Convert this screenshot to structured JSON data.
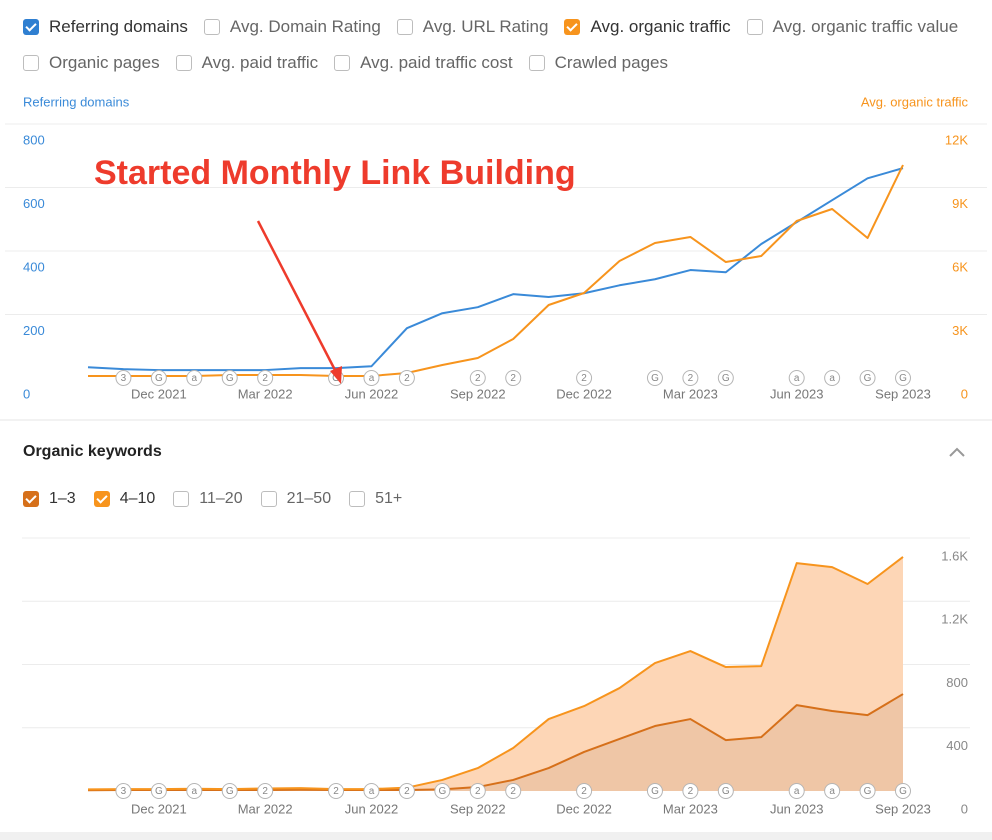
{
  "metric_options": [
    [
      {
        "label": "Referring domains",
        "checked": true,
        "color": "#2f7fd1"
      },
      {
        "label": "Avg. Domain Rating",
        "checked": false
      },
      {
        "label": "Avg. URL Rating",
        "checked": false
      },
      {
        "label": "Avg. organic traffic",
        "checked": true,
        "color": "#f7941d"
      },
      {
        "label": "Avg. organic traffic value",
        "checked": false
      }
    ],
    [
      {
        "label": "Organic pages",
        "checked": false
      },
      {
        "label": "Avg. paid traffic",
        "checked": false
      },
      {
        "label": "Avg. paid traffic cost",
        "checked": false
      },
      {
        "label": "Crawled pages",
        "checked": false
      }
    ]
  ],
  "chart_data": [
    {
      "type": "line",
      "annotation": "Started Monthly Link Building",
      "categories": [
        null,
        null,
        "Dec 2021",
        null,
        null,
        "Mar 2022",
        null,
        null,
        "Jun 2022",
        null,
        null,
        "Sep 2022",
        null,
        null,
        "Dec 2022",
        null,
        null,
        "Mar 2023",
        null,
        null,
        "Jun 2023",
        null,
        null,
        "Sep 2023"
      ],
      "markers": [
        null,
        "3",
        "G",
        "a",
        "G",
        "2",
        null,
        "G",
        "a",
        "2",
        null,
        "2",
        "2",
        null,
        "2",
        null,
        "G",
        "2",
        "G",
        null,
        "a",
        "a",
        "G",
        "G"
      ],
      "series": [
        {
          "name": "Referring domains",
          "color": "#3a8ad8",
          "values": [
            34,
            28,
            25,
            25,
            25,
            25,
            31,
            31,
            37,
            157,
            204,
            223,
            264,
            255,
            267,
            292,
            311,
            340,
            333,
            422,
            491,
            560,
            629,
            661
          ]
        },
        {
          "name": "Avg. organic traffic",
          "color": "#f7941d",
          "axis": "y2",
          "values": [
            95,
            97,
            97,
            97,
            142,
            142,
            142,
            97,
            97,
            237,
            614,
            945,
            1843,
            3449,
            4016,
            5528,
            6378,
            6662,
            5480,
            5764,
            7417,
            7984,
            6614,
            10063
          ]
        }
      ],
      "ylim": [
        0,
        800
      ],
      "yticks": [
        0,
        200,
        400,
        600,
        800
      ],
      "y2lim": [
        0,
        12000
      ],
      "y2ticks": [
        0,
        {
          "value": 3000,
          "label": "3K"
        },
        {
          "value": 6000,
          "label": "6K"
        },
        {
          "value": 9000,
          "label": "9K"
        },
        {
          "value": 12000,
          "label": "12K"
        }
      ],
      "grid": true
    },
    {
      "type": "stacked-area",
      "title": "Organic keywords",
      "other_options": [
        {
          "label": "11–20",
          "checked": false
        },
        {
          "label": "21–50",
          "checked": false
        },
        {
          "label": "51+",
          "checked": false
        }
      ],
      "categories": [
        null,
        null,
        "Dec 2021",
        null,
        null,
        "Mar 2022",
        null,
        null,
        "Jun 2022",
        null,
        null,
        "Sep 2022",
        null,
        null,
        "Dec 2022",
        null,
        null,
        "Mar 2023",
        null,
        null,
        "Jun 2023",
        null,
        null,
        "Sep 2023"
      ],
      "markers": [
        null,
        "3",
        "G",
        "a",
        "G",
        "2",
        null,
        "2",
        "a",
        "2",
        "G",
        "2",
        "2",
        null,
        "2",
        null,
        "G",
        "2",
        "G",
        null,
        "a",
        "a",
        "G",
        "G"
      ],
      "series": [
        {
          "name": "1–3",
          "color": "#d6701a",
          "fill": "#efc6a6",
          "values": [
            5,
            6,
            6,
            6,
            6,
            6,
            8,
            6,
            6,
            6,
            10,
            25,
            70,
            145,
            247,
            329,
            411,
            455,
            322,
            341,
            543,
            506,
            480,
            613
          ]
        },
        {
          "name": "4–10",
          "color": "#f7941d",
          "fill": "#fdd6b6",
          "values": [
            5,
            6,
            6,
            8,
            6,
            10,
            10,
            6,
            6,
            15,
            60,
            120,
            202,
            310,
            290,
            322,
            398,
            430,
            462,
            449,
            898,
            910,
            829,
            867
          ]
        }
      ],
      "ylim": [
        0,
        1600
      ],
      "yticks": [
        0,
        400,
        800,
        {
          "value": 1200,
          "label": "1.2K"
        },
        {
          "value": 1600,
          "label": "1.6K"
        }
      ],
      "grid": true
    }
  ]
}
